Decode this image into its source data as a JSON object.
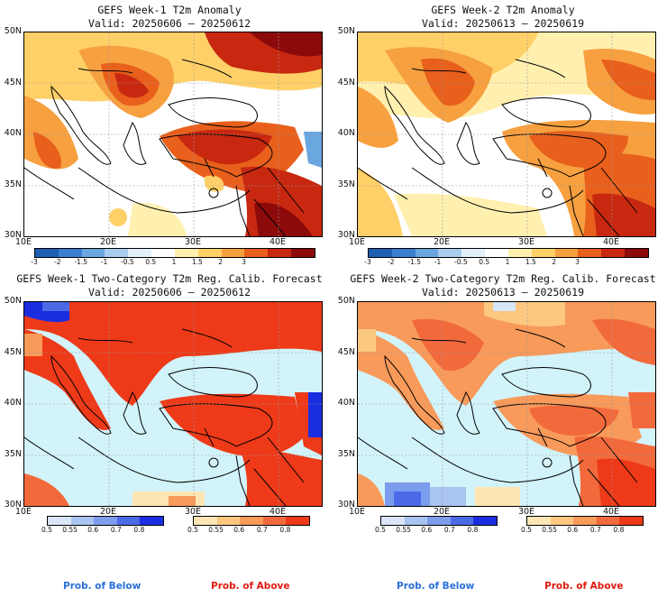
{
  "panels": [
    {
      "title": "GEFS Week-1 T2m Anomaly",
      "valid": "Valid: 20250606 – 20250612"
    },
    {
      "title": "GEFS Week-2 T2m Anomaly",
      "valid": "Valid: 20250613 – 20250619"
    },
    {
      "title": "GEFS Week-1 Two-Category T2m Reg. Calib. Forecast",
      "valid": "Valid: 20250606 – 20250612"
    },
    {
      "title": "GEFS Week-2 Two-Category T2m Reg. Calib. Forecast",
      "valid": "Valid: 20250613 – 20250619"
    }
  ],
  "lat_labels": [
    "50N",
    "45N",
    "40N",
    "35N",
    "30N"
  ],
  "lon_labels": [
    "10E",
    "20E",
    "30E",
    "40E"
  ],
  "anomaly_colorbar": {
    "ticks": [
      "-3",
      "-2",
      "-1.5",
      "-1",
      "-0.5",
      "0.5",
      "1",
      "1.5",
      "2",
      "3"
    ],
    "colors": [
      "#1e5fb4",
      "#3a7fd0",
      "#6aa6e0",
      "#a8cdef",
      "#e2f0fa",
      "#ffffff",
      "#fff0b0",
      "#ffd068",
      "#f7a040",
      "#e8601c",
      "#c82810",
      "#8c0a0a"
    ]
  },
  "below_colorbar": {
    "ticks": [
      "0.5",
      "0.55",
      "0.6",
      "0.7",
      "0.8"
    ],
    "colors": [
      "#d8e6f8",
      "#aac4f2",
      "#7c9cee",
      "#4c6ae8",
      "#1a2ee0"
    ]
  },
  "above_colorbar": {
    "ticks": [
      "0.5",
      "0.55",
      "0.6",
      "0.7",
      "0.8"
    ],
    "colors": [
      "#fde6b4",
      "#fcc880",
      "#f89a5a",
      "#f26a3c",
      "#ee3a18"
    ]
  },
  "legend": {
    "below": "Prob. of Below",
    "above": "Prob. of Above",
    "below_color": "#2a70d8",
    "above_color": "#e21a10"
  },
  "map_colors": {
    "sea_prob": "#d2f3fa",
    "land_line": "#000000",
    "grid": "#999999"
  }
}
